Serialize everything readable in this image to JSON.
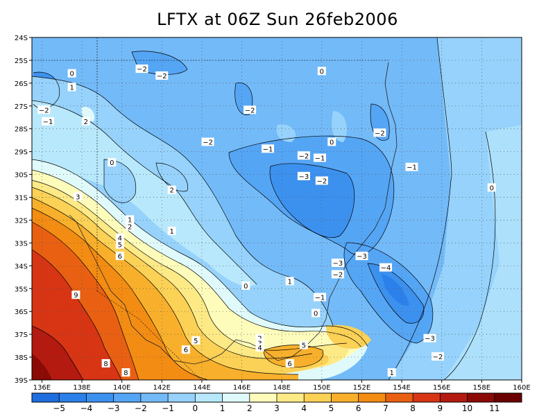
{
  "title": "LFTX at 06Z Sun 26feb2006",
  "map": {
    "lon_range": [
      135.5,
      160
    ],
    "lat_range": [
      -39,
      -24
    ],
    "lon_ticks": [
      "136E",
      "138E",
      "140E",
      "142E",
      "144E",
      "146E",
      "148E",
      "150E",
      "152E",
      "154E",
      "156E",
      "158E",
      "160E"
    ],
    "lat_ticks": [
      "24S",
      "25S",
      "26S",
      "27S",
      "28S",
      "29S",
      "30S",
      "31S",
      "32S",
      "33S",
      "34S",
      "35S",
      "36S",
      "37S",
      "38S",
      "39S"
    ],
    "grid": "dotted"
  },
  "contour_labels": [
    {
      "text": "-2",
      "lon": 141.0,
      "lat": -25.4
    },
    {
      "text": "-2",
      "lon": 142.0,
      "lat": -25.7
    },
    {
      "text": "0",
      "lon": 137.5,
      "lat": -25.6
    },
    {
      "text": "1",
      "lon": 137.5,
      "lat": -26.2
    },
    {
      "text": "0",
      "lon": 150.0,
      "lat": -25.5
    },
    {
      "text": "-2",
      "lon": 136.1,
      "lat": -27.2
    },
    {
      "text": "-1",
      "lon": 136.3,
      "lat": -27.7
    },
    {
      "text": "2",
      "lon": 138.2,
      "lat": -27.7
    },
    {
      "text": "-2",
      "lon": 146.4,
      "lat": -27.2
    },
    {
      "text": "-2",
      "lon": 144.3,
      "lat": -28.6
    },
    {
      "text": "-1",
      "lon": 147.3,
      "lat": -28.9
    },
    {
      "text": "0",
      "lon": 150.5,
      "lat": -28.6
    },
    {
      "text": "-2",
      "lon": 152.9,
      "lat": -28.2
    },
    {
      "text": "-2",
      "lon": 149.1,
      "lat": -29.2
    },
    {
      "text": "-1",
      "lon": 149.9,
      "lat": -29.3
    },
    {
      "text": "0",
      "lon": 139.5,
      "lat": -29.5
    },
    {
      "text": "-3",
      "lon": 149.1,
      "lat": -30.1
    },
    {
      "text": "-2",
      "lon": 150.0,
      "lat": -30.3
    },
    {
      "text": "-1",
      "lon": 154.5,
      "lat": -29.7
    },
    {
      "text": "2",
      "lon": 142.5,
      "lat": -30.7
    },
    {
      "text": "0",
      "lon": 158.5,
      "lat": -30.6
    },
    {
      "text": "3",
      "lon": 137.8,
      "lat": -31.0
    },
    {
      "text": "1",
      "lon": 140.4,
      "lat": -32.0
    },
    {
      "text": "2",
      "lon": 140.4,
      "lat": -32.3
    },
    {
      "text": "1",
      "lon": 142.5,
      "lat": -32.5
    },
    {
      "text": "4",
      "lon": 139.9,
      "lat": -32.8
    },
    {
      "text": "5",
      "lon": 139.9,
      "lat": -33.1
    },
    {
      "text": "6",
      "lon": 139.9,
      "lat": -33.6
    },
    {
      "text": "-3",
      "lon": 152.0,
      "lat": -33.6
    },
    {
      "text": "-3",
      "lon": 150.8,
      "lat": -33.9
    },
    {
      "text": "-4",
      "lon": 153.2,
      "lat": -34.1
    },
    {
      "text": "-2",
      "lon": 150.8,
      "lat": -34.4
    },
    {
      "text": "1",
      "lon": 148.4,
      "lat": -34.7
    },
    {
      "text": "0",
      "lon": 146.2,
      "lat": -34.9
    },
    {
      "text": "9",
      "lon": 137.7,
      "lat": -35.3
    },
    {
      "text": "-1",
      "lon": 149.9,
      "lat": -35.4
    },
    {
      "text": "0",
      "lon": 149.7,
      "lat": -36.1
    },
    {
      "text": "-3",
      "lon": 155.4,
      "lat": -37.2
    },
    {
      "text": "5",
      "lon": 143.7,
      "lat": -37.3
    },
    {
      "text": "2",
      "lon": 146.9,
      "lat": -37.2
    },
    {
      "text": "3",
      "lon": 146.9,
      "lat": -37.4
    },
    {
      "text": "4",
      "lon": 146.9,
      "lat": -37.6
    },
    {
      "text": "5",
      "lon": 149.1,
      "lat": -37.5
    },
    {
      "text": "6",
      "lon": 143.2,
      "lat": -37.7
    },
    {
      "text": "-2",
      "lon": 155.8,
      "lat": -38.0
    },
    {
      "text": "6",
      "lon": 148.4,
      "lat": -38.3
    },
    {
      "text": "8",
      "lon": 139.2,
      "lat": -38.3
    },
    {
      "text": "1",
      "lon": 153.5,
      "lat": -38.7
    },
    {
      "text": "8",
      "lon": 140.2,
      "lat": -38.7
    }
  ],
  "colorbar": {
    "labels": [
      "−5",
      "−4",
      "−3",
      "−2",
      "−1",
      "0",
      "1",
      "2",
      "3",
      "4",
      "5",
      "6",
      "7",
      "8",
      "9",
      "10",
      "11"
    ],
    "colors": [
      "#1e6ee0",
      "#2b80ea",
      "#3c91ef",
      "#55a5f5",
      "#73baf8",
      "#96d2fb",
      "#b8e8fb",
      "#e0fafc",
      "#fefcbb",
      "#fdea86",
      "#fbd156",
      "#f8b02c",
      "#f38c13",
      "#e96012",
      "#d73514",
      "#b41a10",
      "#8b0a06",
      "#6b0000"
    ]
  }
}
